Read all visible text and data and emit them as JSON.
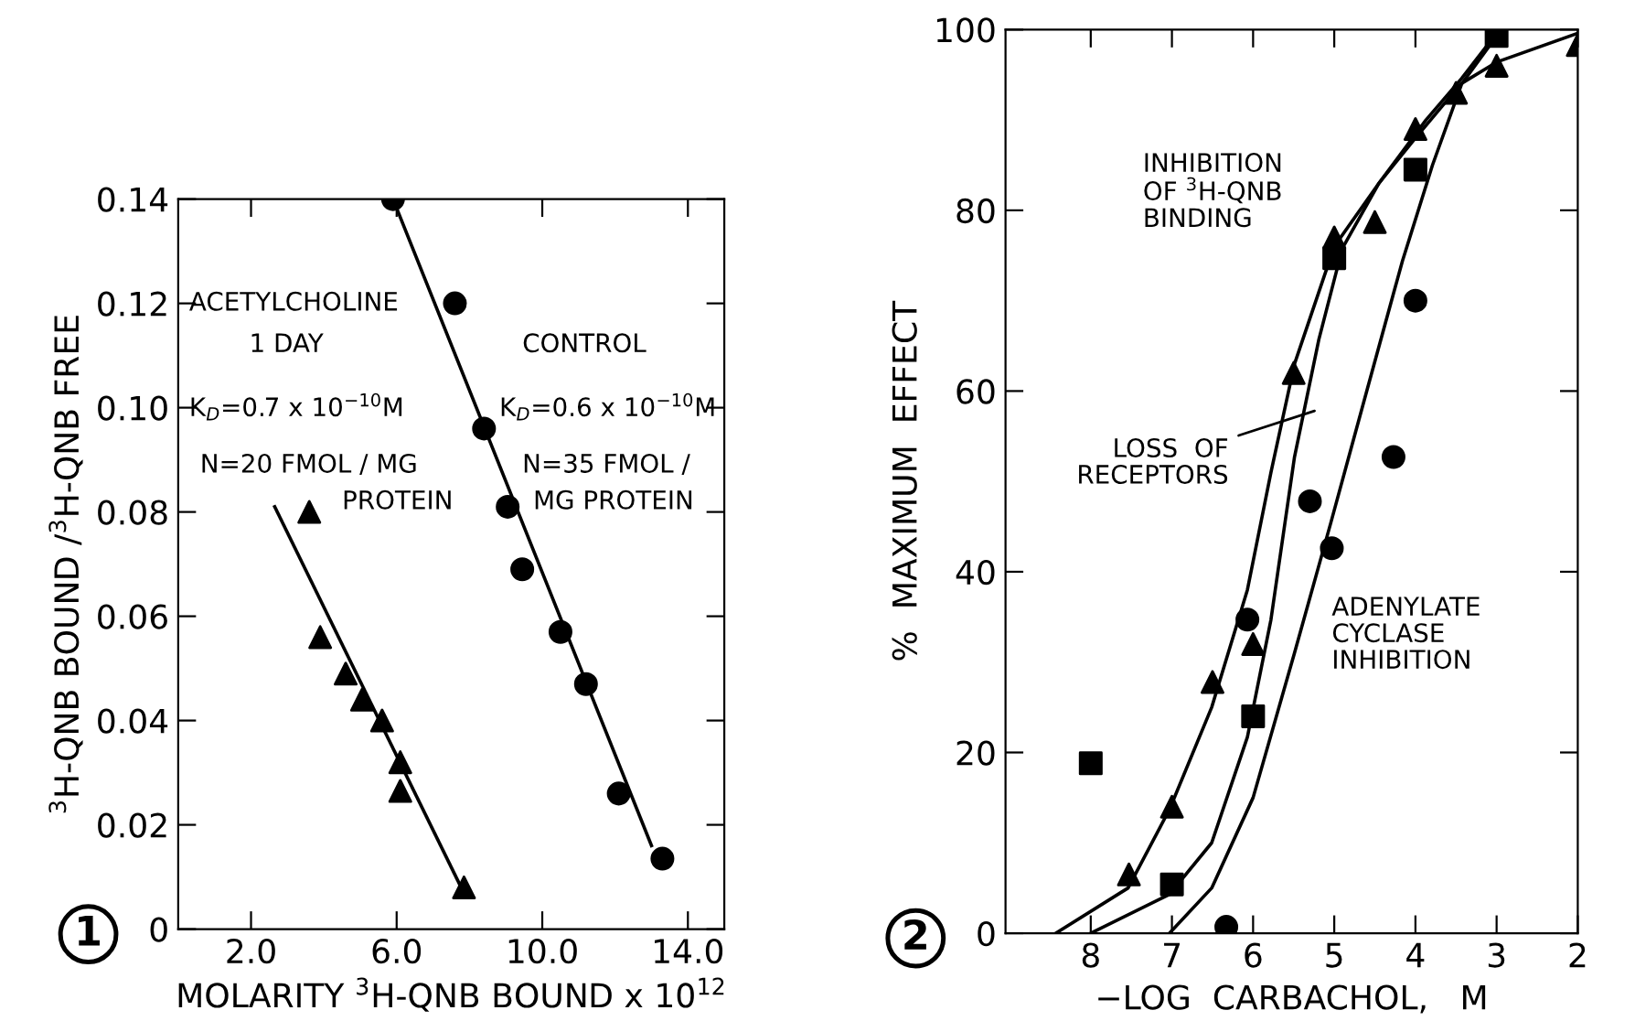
{
  "chart_data": [
    {
      "type": "scatter",
      "xlabel": "MOLARITY $^{3}$H-QNB BOUND x 10$^{12}$",
      "ylabel": "$^{3}$H-QNB BOUND /$^{3}$H-QNB FREE",
      "xlim": [
        0,
        15
      ],
      "xticks": [
        {
          "value": 2,
          "label": "2.0"
        },
        {
          "value": 6,
          "label": "6.0"
        },
        {
          "value": 10,
          "label": "10.0"
        },
        {
          "value": 14,
          "label": "14.0"
        }
      ],
      "ylim": [
        0,
        0.14
      ],
      "yticks": [
        0,
        0.02,
        0.04,
        0.06,
        0.08,
        {
          "value": 0.1,
          "label": "0.10"
        },
        0.12,
        0.14
      ],
      "grid": false,
      "series": [
        {
          "marker": "circle",
          "color": "#000000",
          "x": [
            5.9,
            7.6,
            8.4,
            9.05,
            9.45,
            10.5,
            11.2,
            12.1,
            13.3
          ],
          "values": [
            0.14,
            0.12,
            0.096,
            0.081,
            0.069,
            0.057,
            0.047,
            0.026,
            0.0135
          ]
        },
        {
          "type": "line",
          "line_style": "solid",
          "color": "#000000",
          "x": [
            5.9,
            13.0
          ],
          "values": [
            0.14,
            0.016
          ]
        },
        {
          "marker": "triangle",
          "color": "#000000",
          "x": [
            3.6,
            3.9,
            4.6,
            5.05,
            5.6,
            6.1,
            6.1,
            7.85
          ],
          "values": [
            0.08,
            0.056,
            0.049,
            0.044,
            0.04,
            0.032,
            0.0265,
            0.008
          ]
        },
        {
          "type": "line",
          "line_style": "solid",
          "color": "#000000",
          "x": [
            2.65,
            7.75
          ],
          "values": [
            0.081,
            0.0083
          ]
        }
      ],
      "annotations": [
        "ACETYLCHOLINE",
        "1 DAY",
        "K$_{D}$=0.7 x 10$^{−10}$M",
        "N=20 FMOL / MG",
        "PROTEIN",
        "CONTROL",
        "K$_{D}$=0.6 x 10$^{−10}$M",
        "N=35 FMOL /",
        "MG PROTEIN",
        "1"
      ]
    },
    {
      "type": "scatter",
      "xlabel": "−LOG  CARBACHOL,   M",
      "ylabel": "%  MAXIMUM  EFFECT",
      "xlim": [
        9.05,
        2
      ],
      "xticks": [
        8,
        7,
        6,
        5,
        4,
        3,
        2
      ],
      "ylim": [
        0,
        100
      ],
      "yticks": [
        0,
        20,
        40,
        60,
        80,
        100
      ],
      "grid": false,
      "series": [
        {
          "marker": "triangle",
          "color": "#000000",
          "x": [
            7.53,
            7.0,
            6.5,
            6.0,
            5.5,
            5.0,
            4.5,
            4.0,
            3.5,
            3.0,
            2.0
          ],
          "values": [
            6.5,
            14,
            27.8,
            32,
            62,
            77,
            78.7,
            89,
            93,
            96,
            98.3
          ]
        },
        {
          "marker": "square",
          "color": "#000000",
          "x": [
            8.0,
            7.0,
            6.0,
            5.0,
            4.0,
            3.0
          ],
          "values": [
            18.8,
            5.4,
            24,
            74.7,
            84.5,
            99.3
          ]
        },
        {
          "marker": "circle",
          "color": "#000000",
          "x": [
            6.33,
            6.07,
            5.3,
            5.03,
            4.27,
            4.0
          ],
          "values": [
            0.7,
            34.7,
            47.8,
            42.6,
            52.7,
            70
          ]
        },
        {
          "type": "line",
          "line_style": "solid",
          "color": "#000000",
          "x": [
            8.43,
            7.54,
            7.03,
            6.51,
            6.07,
            5.78,
            5.49,
            5.0,
            4.45,
            4.0,
            3.44,
            3.0,
            2.0
          ],
          "values": [
            0,
            5,
            13.7,
            25,
            38,
            51,
            63,
            76,
            83,
            88,
            94,
            96.4,
            99.6
          ]
        },
        {
          "type": "line",
          "line_style": "solid",
          "color": "#000000",
          "x": [
            8.0,
            7.03,
            6.51,
            6.07,
            5.78,
            5.49,
            5.19,
            4.9,
            4.45,
            3.87,
            3.43,
            3.0
          ],
          "values": [
            0,
            4.3,
            10,
            21.7,
            34.7,
            52.7,
            65.7,
            75.8,
            83,
            90,
            94.6,
            99.6
          ]
        },
        {
          "type": "line",
          "line_style": "solid",
          "color": "#000000",
          "x": [
            7.03,
            6.51,
            6.0,
            5.49,
            5.04,
            4.6,
            4.16,
            3.79,
            3.43,
            3.0
          ],
          "values": [
            0,
            5,
            15,
            31,
            45.5,
            60,
            74.4,
            85,
            94,
            99.3
          ]
        }
      ],
      "annotations": [
        "INHIBITION\nOF $^{3}$H-QNB\nBINDING",
        "LOSS  OF\nRECEPTORS",
        "ADENYLATE\nCYCLASE\nINHIBITION",
        "2"
      ]
    }
  ]
}
